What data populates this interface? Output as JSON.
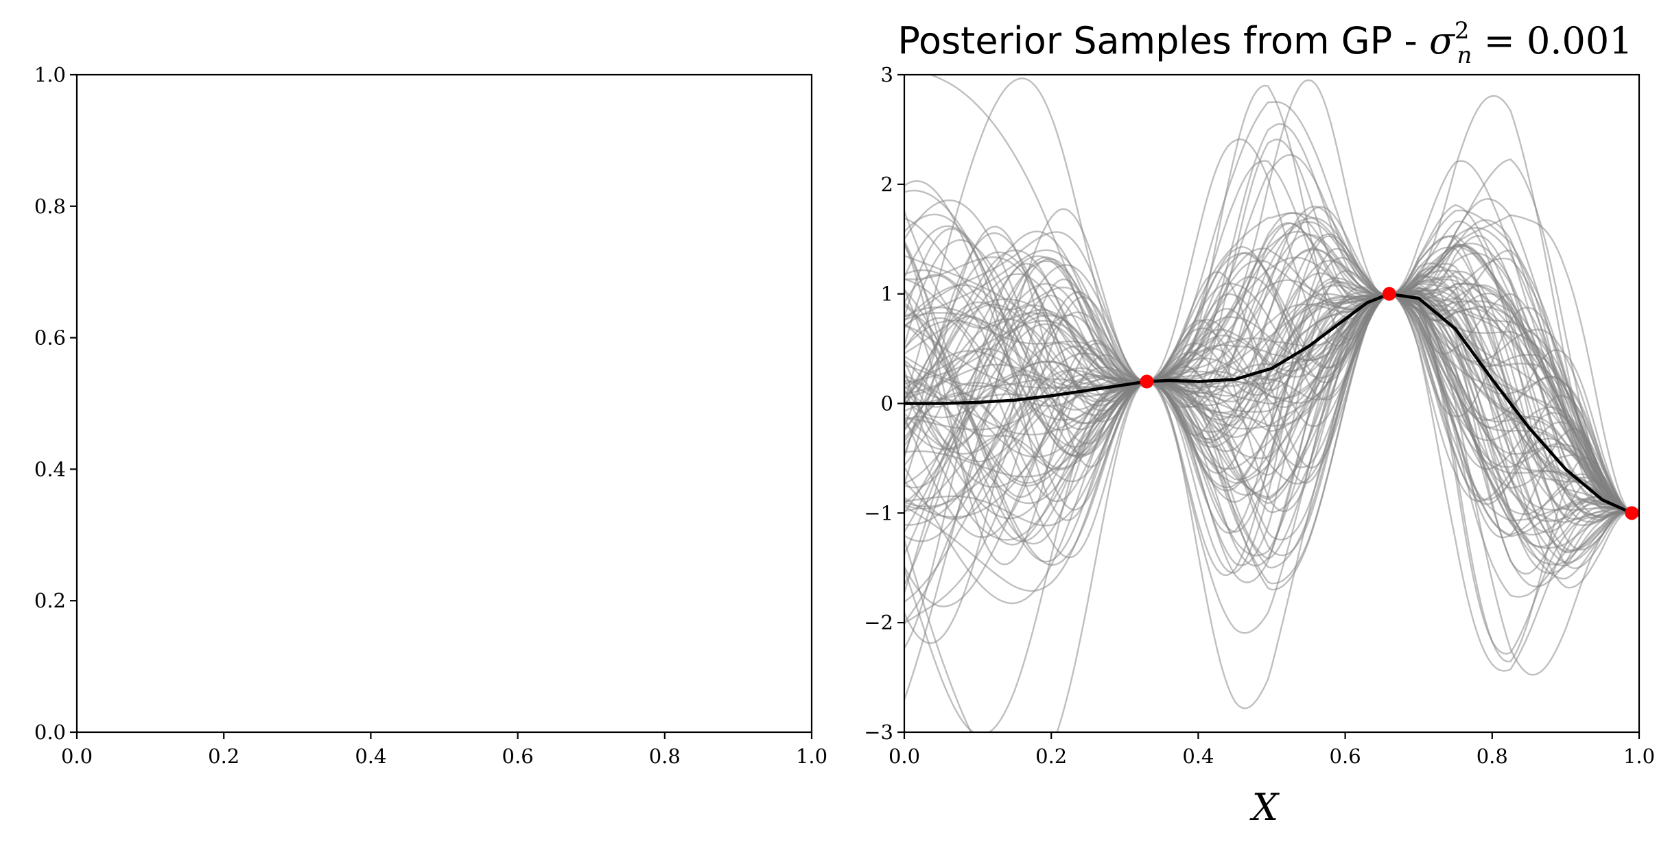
{
  "chart_data": [
    {
      "type": "line",
      "panel": "left",
      "title": "",
      "xlabel": "",
      "ylabel": "",
      "xlim": [
        0.0,
        1.0
      ],
      "ylim": [
        0.0,
        1.0
      ],
      "xticks": [
        0.0,
        0.2,
        0.4,
        0.6,
        0.8,
        1.0
      ],
      "yticks": [
        0.0,
        0.2,
        0.4,
        0.6,
        0.8,
        1.0
      ],
      "xtick_labels": [
        "0.0",
        "0.2",
        "0.4",
        "0.6",
        "0.8",
        "1.0"
      ],
      "ytick_labels": [
        "0.0",
        "0.2",
        "0.4",
        "0.6",
        "0.8",
        "1.0"
      ],
      "series": []
    },
    {
      "type": "line",
      "panel": "right",
      "title": "Posterior Samples from GP - ",
      "title_math": {
        "symbol": "σ",
        "subscript": "n",
        "superscript": "2",
        "relation": " = ",
        "value": "0.001"
      },
      "xlabel": "X",
      "ylabel": "",
      "xlim": [
        0.0,
        1.0
      ],
      "ylim": [
        -3,
        3
      ],
      "xticks": [
        0.0,
        0.2,
        0.4,
        0.6,
        0.8,
        1.0
      ],
      "yticks": [
        -3,
        -2,
        -1,
        0,
        1,
        2,
        3
      ],
      "xtick_labels": [
        "0.0",
        "0.2",
        "0.4",
        "0.6",
        "0.8",
        "1.0"
      ],
      "ytick_labels": [
        "−3",
        "−2",
        "−1",
        "0",
        "1",
        "2",
        "3"
      ],
      "observations": {
        "x": [
          0.33,
          0.66,
          0.99
        ],
        "y": [
          0.2,
          1.0,
          -1.0
        ],
        "color": "#ff0000"
      },
      "posterior_mean": {
        "name": "posterior mean",
        "color": "#000000",
        "x": [
          0.0,
          0.05,
          0.1,
          0.15,
          0.2,
          0.25,
          0.3,
          0.33,
          0.36,
          0.4,
          0.45,
          0.5,
          0.55,
          0.6,
          0.63,
          0.66,
          0.7,
          0.75,
          0.8,
          0.85,
          0.9,
          0.95,
          0.99,
          1.0
        ],
        "y": [
          0.0,
          0.0,
          0.01,
          0.03,
          0.07,
          0.12,
          0.17,
          0.2,
          0.21,
          0.2,
          0.22,
          0.32,
          0.52,
          0.77,
          0.92,
          1.0,
          0.96,
          0.68,
          0.22,
          -0.22,
          -0.6,
          -0.88,
          -1.0,
          -1.0
        ]
      },
      "samples": {
        "count": 100,
        "color": "#808080",
        "opacity": 0.5,
        "envelope_x": [
          0.0,
          0.1,
          0.2,
          0.33,
          0.45,
          0.55,
          0.66,
          0.8,
          0.9,
          0.99,
          1.0
        ],
        "envelope_upper": [
          1.6,
          2.2,
          2.3,
          0.2,
          2.4,
          2.0,
          1.0,
          2.7,
          2.2,
          -1.0,
          -0.6
        ],
        "envelope_lower": [
          -2.4,
          -2.7,
          -2.4,
          0.2,
          -2.2,
          -0.9,
          1.0,
          -1.5,
          -2.3,
          -1.0,
          -1.2
        ]
      }
    }
  ]
}
